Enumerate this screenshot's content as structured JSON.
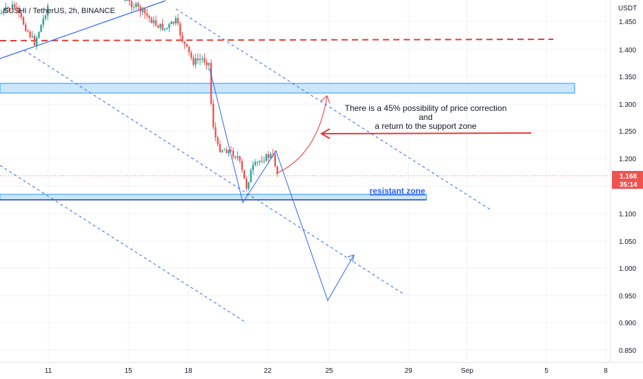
{
  "chart_data": {
    "type": "candlestick",
    "title": "SUSHI / TetherUS, 2h, BINANCE",
    "currency": "USDT",
    "y_ticks": [
      "1.450",
      "1.400",
      "1.350",
      "1.300",
      "1.250",
      "1.200",
      "1.150",
      "1.100",
      "1.050",
      "1.000",
      "0.950",
      "0.900",
      "0.850"
    ],
    "x_ticks": [
      "11",
      "15",
      "18",
      "22",
      "25",
      "29",
      "Sep",
      "5",
      "8"
    ],
    "last_price": "1.168",
    "countdown": "35:14",
    "resistance_label": "resistant zone",
    "annotation_lines": [
      "There is a 45% possibility of price correction",
      "and",
      "a return to the support zone"
    ],
    "colors": {
      "up": "#26a69a",
      "down": "#ef5350",
      "zone_fill": "#bbdefb",
      "zone_stroke": "#2196f3",
      "line_blue": "#2962ff",
      "red": "#e53935"
    }
  }
}
